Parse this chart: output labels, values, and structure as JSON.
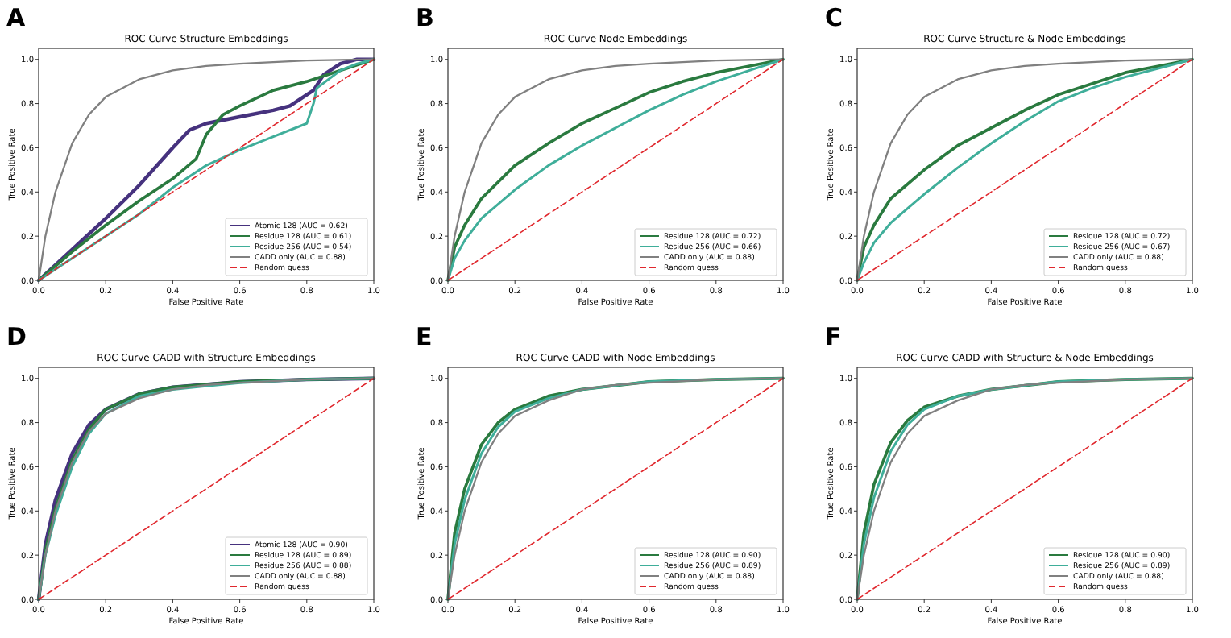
{
  "chart_data": [
    {
      "type": "line",
      "title": "ROC Curve Structure Embeddings",
      "xlabel": "False Positive Rate",
      "ylabel": "True Positive Rate",
      "annotations": [
        "A"
      ],
      "legend": "bottom right",
      "xlim": [
        0,
        1
      ],
      "ylim": [
        0,
        1.05
      ],
      "xticks": [
        {
          "value": 0,
          "label": "0.0"
        },
        {
          "value": 0.2,
          "label": "0.2"
        },
        {
          "value": 0.4,
          "label": "0.4"
        },
        {
          "value": 0.6,
          "label": "0.6"
        },
        {
          "value": 0.8,
          "label": "0.8"
        },
        {
          "value": 1,
          "label": "1.0"
        }
      ],
      "yticks": [
        {
          "value": 0,
          "label": "0.0"
        },
        {
          "value": 0.2,
          "label": "0.2"
        },
        {
          "value": 0.4,
          "label": "0.4"
        },
        {
          "value": 0.6,
          "label": "0.6"
        },
        {
          "value": 0.8,
          "label": "0.8"
        },
        {
          "value": 1,
          "label": "1.0"
        }
      ],
      "series": [
        {
          "name": "Atomic 128 (AUC = 0.62)",
          "color": "#46327e",
          "x": [
            0,
            0.1,
            0.2,
            0.3,
            0.4,
            0.45,
            0.5,
            0.6,
            0.7,
            0.75,
            0.8,
            0.82,
            0.85,
            0.9,
            0.95,
            1
          ],
          "values": [
            0,
            0.14,
            0.28,
            0.43,
            0.6,
            0.68,
            0.71,
            0.74,
            0.77,
            0.79,
            0.84,
            0.86,
            0.93,
            0.98,
            1,
            1
          ]
        },
        {
          "name": "Residue 128 (AUC = 0.61)",
          "color": "#2a7a3f",
          "x": [
            0,
            0.1,
            0.2,
            0.3,
            0.4,
            0.47,
            0.5,
            0.55,
            0.6,
            0.7,
            0.8,
            0.9,
            1
          ],
          "values": [
            0,
            0.13,
            0.25,
            0.36,
            0.46,
            0.55,
            0.66,
            0.75,
            0.79,
            0.86,
            0.9,
            0.95,
            1
          ]
        },
        {
          "name": "Residue 256 (AUC = 0.54)",
          "color": "#3fae9a",
          "x": [
            0,
            0.1,
            0.2,
            0.3,
            0.4,
            0.5,
            0.6,
            0.7,
            0.8,
            0.82,
            0.83,
            0.9,
            0.95,
            1
          ],
          "values": [
            0,
            0.1,
            0.2,
            0.3,
            0.42,
            0.52,
            0.59,
            0.65,
            0.71,
            0.8,
            0.87,
            0.95,
            0.98,
            1
          ]
        },
        {
          "name": "CADD only (AUC = 0.88)",
          "color": "#808080",
          "x": [
            0,
            0.02,
            0.05,
            0.1,
            0.15,
            0.2,
            0.3,
            0.4,
            0.5,
            0.6,
            0.8,
            1
          ],
          "values": [
            0,
            0.2,
            0.4,
            0.62,
            0.75,
            0.83,
            0.91,
            0.95,
            0.97,
            0.98,
            0.995,
            1
          ]
        },
        {
          "name": "Random guess",
          "color": "#e0282e",
          "line_style": "dashed",
          "x": [
            0,
            1
          ],
          "values": [
            0,
            1
          ]
        }
      ]
    },
    {
      "type": "line",
      "title": "ROC Curve Node Embeddings",
      "xlabel": "False Positive Rate",
      "ylabel": "True Positive Rate",
      "annotations": [
        "B"
      ],
      "legend": "bottom right",
      "xlim": [
        0,
        1
      ],
      "ylim": [
        0,
        1.05
      ],
      "xticks": [
        {
          "value": 0,
          "label": "0.0"
        },
        {
          "value": 0.2,
          "label": "0.2"
        },
        {
          "value": 0.4,
          "label": "0.4"
        },
        {
          "value": 0.6,
          "label": "0.6"
        },
        {
          "value": 0.8,
          "label": "0.8"
        },
        {
          "value": 1,
          "label": "1.0"
        }
      ],
      "yticks": [
        {
          "value": 0,
          "label": "0.0"
        },
        {
          "value": 0.2,
          "label": "0.2"
        },
        {
          "value": 0.4,
          "label": "0.4"
        },
        {
          "value": 0.6,
          "label": "0.6"
        },
        {
          "value": 0.8,
          "label": "0.8"
        },
        {
          "value": 1,
          "label": "1.0"
        }
      ],
      "series": [
        {
          "name": "Residue 128 (AUC = 0.72)",
          "color": "#2a7a3f",
          "x": [
            0,
            0.02,
            0.05,
            0.1,
            0.2,
            0.3,
            0.4,
            0.5,
            0.6,
            0.7,
            0.8,
            0.9,
            1
          ],
          "values": [
            0,
            0.15,
            0.25,
            0.37,
            0.52,
            0.62,
            0.71,
            0.78,
            0.85,
            0.9,
            0.94,
            0.97,
            1
          ]
        },
        {
          "name": "Residue 256 (AUC = 0.66)",
          "color": "#3fae9a",
          "x": [
            0,
            0.02,
            0.05,
            0.1,
            0.2,
            0.3,
            0.4,
            0.5,
            0.6,
            0.7,
            0.8,
            0.9,
            1
          ],
          "values": [
            0,
            0.1,
            0.18,
            0.28,
            0.41,
            0.52,
            0.61,
            0.69,
            0.77,
            0.84,
            0.9,
            0.95,
            1
          ]
        },
        {
          "name": "CADD only (AUC = 0.88)",
          "color": "#808080",
          "x": [
            0,
            0.02,
            0.05,
            0.1,
            0.15,
            0.2,
            0.3,
            0.4,
            0.5,
            0.6,
            0.8,
            1
          ],
          "values": [
            0,
            0.2,
            0.4,
            0.62,
            0.75,
            0.83,
            0.91,
            0.95,
            0.97,
            0.98,
            0.995,
            1
          ]
        },
        {
          "name": "Random guess",
          "color": "#e0282e",
          "line_style": "dashed",
          "x": [
            0,
            1
          ],
          "values": [
            0,
            1
          ]
        }
      ]
    },
    {
      "type": "line",
      "title": "ROC Curve Structure & Node Embeddings",
      "xlabel": "False Positive Rate",
      "ylabel": "True Positive Rate",
      "annotations": [
        "C"
      ],
      "legend": "bottom right",
      "xlim": [
        0,
        1
      ],
      "ylim": [
        0,
        1.05
      ],
      "xticks": [
        {
          "value": 0,
          "label": "0.0"
        },
        {
          "value": 0.2,
          "label": "0.2"
        },
        {
          "value": 0.4,
          "label": "0.4"
        },
        {
          "value": 0.6,
          "label": "0.6"
        },
        {
          "value": 0.8,
          "label": "0.8"
        },
        {
          "value": 1,
          "label": "1.0"
        }
      ],
      "yticks": [
        {
          "value": 0,
          "label": "0.0"
        },
        {
          "value": 0.2,
          "label": "0.2"
        },
        {
          "value": 0.4,
          "label": "0.4"
        },
        {
          "value": 0.6,
          "label": "0.6"
        },
        {
          "value": 0.8,
          "label": "0.8"
        },
        {
          "value": 1,
          "label": "1.0"
        }
      ],
      "series": [
        {
          "name": "Residue 128 (AUC = 0.72)",
          "color": "#2a7a3f",
          "x": [
            0,
            0.02,
            0.05,
            0.1,
            0.2,
            0.3,
            0.4,
            0.5,
            0.6,
            0.7,
            0.8,
            0.9,
            1
          ],
          "values": [
            0,
            0.15,
            0.25,
            0.37,
            0.5,
            0.61,
            0.69,
            0.77,
            0.84,
            0.89,
            0.94,
            0.97,
            1
          ]
        },
        {
          "name": "Residue 256 (AUC = 0.67)",
          "color": "#3fae9a",
          "x": [
            0,
            0.02,
            0.05,
            0.1,
            0.2,
            0.3,
            0.4,
            0.5,
            0.6,
            0.7,
            0.8,
            0.9,
            1
          ],
          "values": [
            0,
            0.08,
            0.17,
            0.26,
            0.39,
            0.51,
            0.62,
            0.72,
            0.81,
            0.87,
            0.92,
            0.96,
            1
          ]
        },
        {
          "name": "CADD only (AUC = 0.88)",
          "color": "#808080",
          "x": [
            0,
            0.02,
            0.05,
            0.1,
            0.15,
            0.2,
            0.3,
            0.4,
            0.5,
            0.6,
            0.8,
            1
          ],
          "values": [
            0,
            0.2,
            0.4,
            0.62,
            0.75,
            0.83,
            0.91,
            0.95,
            0.97,
            0.98,
            0.995,
            1
          ]
        },
        {
          "name": "Random guess",
          "color": "#e0282e",
          "line_style": "dashed",
          "x": [
            0,
            1
          ],
          "values": [
            0,
            1
          ]
        }
      ]
    },
    {
      "type": "line",
      "title": "ROC Curve CADD with Structure Embeddings",
      "xlabel": "False Positive Rate",
      "ylabel": "True Positive Rate",
      "annotations": [
        "D"
      ],
      "legend": "bottom right",
      "xlim": [
        0,
        1
      ],
      "ylim": [
        0,
        1.05
      ],
      "xticks": [
        {
          "value": 0,
          "label": "0.0"
        },
        {
          "value": 0.2,
          "label": "0.2"
        },
        {
          "value": 0.4,
          "label": "0.4"
        },
        {
          "value": 0.6,
          "label": "0.6"
        },
        {
          "value": 0.8,
          "label": "0.8"
        },
        {
          "value": 1,
          "label": "1.0"
        }
      ],
      "yticks": [
        {
          "value": 0,
          "label": "0.0"
        },
        {
          "value": 0.2,
          "label": "0.2"
        },
        {
          "value": 0.4,
          "label": "0.4"
        },
        {
          "value": 0.6,
          "label": "0.6"
        },
        {
          "value": 0.8,
          "label": "0.8"
        },
        {
          "value": 1,
          "label": "1.0"
        }
      ],
      "series": [
        {
          "name": "Atomic 128 (AUC = 0.90)",
          "color": "#46327e",
          "x": [
            0,
            0.02,
            0.05,
            0.1,
            0.15,
            0.2,
            0.3,
            0.4,
            0.6,
            0.8,
            1
          ],
          "values": [
            0,
            0.25,
            0.45,
            0.66,
            0.79,
            0.86,
            0.93,
            0.96,
            0.985,
            0.995,
            1
          ]
        },
        {
          "name": "Residue 128 (AUC = 0.89)",
          "color": "#2a7a3f",
          "x": [
            0,
            0.02,
            0.05,
            0.1,
            0.15,
            0.2,
            0.3,
            0.4,
            0.6,
            0.8,
            1
          ],
          "values": [
            0,
            0.22,
            0.41,
            0.63,
            0.77,
            0.86,
            0.93,
            0.96,
            0.985,
            0.995,
            1
          ]
        },
        {
          "name": "Residue 256 (AUC = 0.88)",
          "color": "#3fae9a",
          "x": [
            0,
            0.02,
            0.05,
            0.1,
            0.15,
            0.2,
            0.3,
            0.4,
            0.6,
            0.8,
            1
          ],
          "values": [
            0,
            0.2,
            0.38,
            0.6,
            0.75,
            0.84,
            0.92,
            0.95,
            0.98,
            0.995,
            1
          ]
        },
        {
          "name": "CADD only (AUC = 0.88)",
          "color": "#808080",
          "x": [
            0,
            0.02,
            0.05,
            0.1,
            0.15,
            0.2,
            0.3,
            0.4,
            0.5,
            0.6,
            0.8,
            1
          ],
          "values": [
            0,
            0.2,
            0.4,
            0.62,
            0.76,
            0.84,
            0.91,
            0.95,
            0.97,
            0.98,
            0.995,
            1
          ]
        },
        {
          "name": "Random guess",
          "color": "#e0282e",
          "line_style": "dashed",
          "x": [
            0,
            1
          ],
          "values": [
            0,
            1
          ]
        }
      ]
    },
    {
      "type": "line",
      "title": "ROC Curve CADD with Node Embeddings",
      "xlabel": "False Positive Rate",
      "ylabel": "True Positive Rate",
      "annotations": [
        "E"
      ],
      "legend": "bottom right",
      "xlim": [
        0,
        1
      ],
      "ylim": [
        0,
        1.05
      ],
      "xticks": [
        {
          "value": 0,
          "label": "0.0"
        },
        {
          "value": 0.2,
          "label": "0.2"
        },
        {
          "value": 0.4,
          "label": "0.4"
        },
        {
          "value": 0.6,
          "label": "0.6"
        },
        {
          "value": 0.8,
          "label": "0.8"
        },
        {
          "value": 1,
          "label": "1.0"
        }
      ],
      "yticks": [
        {
          "value": 0,
          "label": "0.0"
        },
        {
          "value": 0.2,
          "label": "0.2"
        },
        {
          "value": 0.4,
          "label": "0.4"
        },
        {
          "value": 0.6,
          "label": "0.6"
        },
        {
          "value": 0.8,
          "label": "0.8"
        },
        {
          "value": 1,
          "label": "1.0"
        }
      ],
      "series": [
        {
          "name": "Residue 128 (AUC = 0.90)",
          "color": "#2a7a3f",
          "x": [
            0,
            0.02,
            0.05,
            0.1,
            0.15,
            0.2,
            0.3,
            0.4,
            0.6,
            0.8,
            1
          ],
          "values": [
            0,
            0.3,
            0.5,
            0.7,
            0.8,
            0.86,
            0.92,
            0.95,
            0.985,
            0.995,
            1
          ]
        },
        {
          "name": "Residue 256 (AUC = 0.89)",
          "color": "#3fae9a",
          "x": [
            0,
            0.02,
            0.05,
            0.1,
            0.15,
            0.2,
            0.3,
            0.4,
            0.6,
            0.8,
            1
          ],
          "values": [
            0,
            0.25,
            0.45,
            0.66,
            0.78,
            0.85,
            0.91,
            0.95,
            0.985,
            0.995,
            1
          ]
        },
        {
          "name": "CADD only (AUC = 0.88)",
          "color": "#808080",
          "x": [
            0,
            0.02,
            0.05,
            0.1,
            0.15,
            0.2,
            0.3,
            0.4,
            0.5,
            0.6,
            0.8,
            1
          ],
          "values": [
            0,
            0.2,
            0.4,
            0.62,
            0.75,
            0.83,
            0.9,
            0.95,
            0.97,
            0.98,
            0.995,
            1
          ]
        },
        {
          "name": "Random guess",
          "color": "#e0282e",
          "line_style": "dashed",
          "x": [
            0,
            1
          ],
          "values": [
            0,
            1
          ]
        }
      ]
    },
    {
      "type": "line",
      "title": "ROC Curve CADD with Structure & Node Embeddings",
      "xlabel": "False Positive Rate",
      "ylabel": "True Positive Rate",
      "annotations": [
        "F"
      ],
      "legend": "bottom right",
      "xlim": [
        0,
        1
      ],
      "ylim": [
        0,
        1.05
      ],
      "xticks": [
        {
          "value": 0,
          "label": "0.0"
        },
        {
          "value": 0.2,
          "label": "0.2"
        },
        {
          "value": 0.4,
          "label": "0.4"
        },
        {
          "value": 0.6,
          "label": "0.6"
        },
        {
          "value": 0.8,
          "label": "0.8"
        },
        {
          "value": 1,
          "label": "1.0"
        }
      ],
      "yticks": [
        {
          "value": 0,
          "label": "0.0"
        },
        {
          "value": 0.2,
          "label": "0.2"
        },
        {
          "value": 0.4,
          "label": "0.4"
        },
        {
          "value": 0.6,
          "label": "0.6"
        },
        {
          "value": 0.8,
          "label": "0.8"
        },
        {
          "value": 1,
          "label": "1.0"
        }
      ],
      "series": [
        {
          "name": "Residue 128 (AUC = 0.90)",
          "color": "#2a7a3f",
          "x": [
            0,
            0.02,
            0.05,
            0.1,
            0.15,
            0.2,
            0.3,
            0.4,
            0.6,
            0.8,
            1
          ],
          "values": [
            0,
            0.3,
            0.52,
            0.71,
            0.81,
            0.87,
            0.92,
            0.95,
            0.985,
            0.995,
            1
          ]
        },
        {
          "name": "Residue 256 (AUC = 0.89)",
          "color": "#3fae9a",
          "x": [
            0,
            0.02,
            0.05,
            0.1,
            0.15,
            0.2,
            0.3,
            0.4,
            0.6,
            0.8,
            1
          ],
          "values": [
            0,
            0.25,
            0.46,
            0.67,
            0.79,
            0.86,
            0.92,
            0.95,
            0.985,
            0.995,
            1
          ]
        },
        {
          "name": "CADD only (AUC = 0.88)",
          "color": "#808080",
          "x": [
            0,
            0.02,
            0.05,
            0.1,
            0.15,
            0.2,
            0.3,
            0.4,
            0.5,
            0.6,
            0.8,
            1
          ],
          "values": [
            0,
            0.2,
            0.4,
            0.62,
            0.75,
            0.83,
            0.9,
            0.95,
            0.97,
            0.98,
            0.995,
            1
          ]
        },
        {
          "name": "Random guess",
          "color": "#e0282e",
          "line_style": "dashed",
          "x": [
            0,
            1
          ],
          "values": [
            0,
            1
          ]
        }
      ]
    }
  ]
}
